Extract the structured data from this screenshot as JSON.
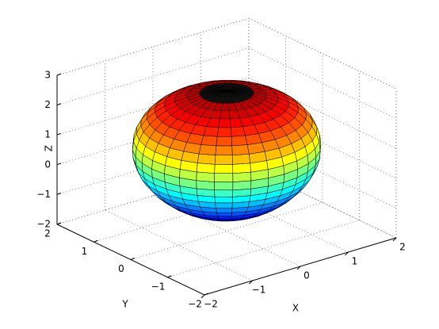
{
  "chart_data": {
    "type": "surface",
    "xlabel": "X",
    "ylabel": "Y",
    "zlabel": "Z",
    "xlim": [
      -2,
      2
    ],
    "ylim": [
      -2,
      2
    ],
    "zlim": [
      -2,
      3
    ],
    "xticks": [
      {
        "value": -2,
        "label": "−2"
      },
      {
        "value": -1,
        "label": "−1"
      },
      0,
      1,
      2
    ],
    "yticks": [
      {
        "value": -2,
        "label": "−2"
      },
      {
        "value": -1,
        "label": "−1"
      },
      0,
      1,
      2
    ],
    "zticks": [
      {
        "value": -2,
        "label": "−2"
      },
      {
        "value": -1,
        "label": "−1"
      },
      0,
      1,
      2,
      3
    ],
    "grid": true,
    "colormap": "jet"
  }
}
